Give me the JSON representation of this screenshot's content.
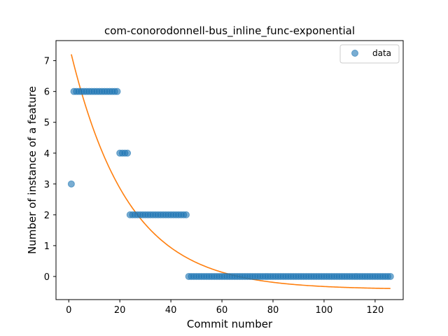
{
  "chart_data": {
    "type": "scatter",
    "title": "com-conorodonnell-bus_inline_func-exponential",
    "xlabel": "Commit number",
    "ylabel": "Number of instance of a feature",
    "xlim": [
      -5,
      131
    ],
    "ylim": [
      -0.75,
      7.65
    ],
    "xticks": [
      0,
      20,
      40,
      60,
      80,
      100,
      120
    ],
    "yticks": [
      0,
      1,
      2,
      3,
      4,
      5,
      6,
      7
    ],
    "grid": false,
    "legend_position": "top-right",
    "series": [
      {
        "name": "data",
        "kind": "scatter",
        "color": "#1f77b4",
        "segments": [
          {
            "x_start": 1,
            "x_end": 1,
            "y": 3
          },
          {
            "x_start": 2,
            "x_end": 19,
            "y": 6
          },
          {
            "x_start": 20,
            "x_end": 23,
            "y": 4
          },
          {
            "x_start": 24,
            "x_end": 46,
            "y": 2
          },
          {
            "x_start": 47,
            "x_end": 126,
            "y": 0
          }
        ]
      },
      {
        "kind": "fit-line",
        "color": "#ff7f0e",
        "x_range": [
          1,
          126
        ],
        "model": "exponential",
        "a": 7.97,
        "b": 0.0443,
        "c": -0.42
      }
    ]
  }
}
